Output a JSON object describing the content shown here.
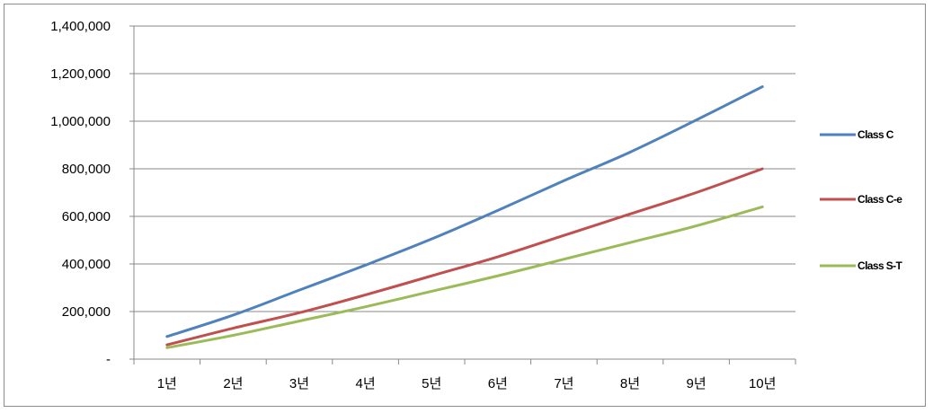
{
  "chart_data": {
    "type": "line",
    "title": "",
    "xlabel": "",
    "ylabel": "",
    "categories": [
      "1년",
      "2년",
      "3년",
      "4년",
      "5년",
      "6년",
      "7년",
      "8년",
      "9년",
      "10년"
    ],
    "ylim": [
      0,
      1400000
    ],
    "y_ticks": [
      0,
      200000,
      400000,
      600000,
      800000,
      1000000,
      1200000,
      1400000
    ],
    "y_tick_labels": [
      "-",
      "200,000",
      "400,000",
      "600,000",
      "800,000",
      "1,000,000",
      "1,200,000",
      "1,400,000"
    ],
    "grid": true,
    "legend_position": "right",
    "series": [
      {
        "name": "Class C",
        "color": "#4f81bd",
        "values": [
          95000,
          185000,
          290000,
          395000,
          505000,
          625000,
          750000,
          870000,
          1005000,
          1145000
        ]
      },
      {
        "name": "Class C-e",
        "color": "#c0504d",
        "values": [
          60000,
          130000,
          195000,
          270000,
          350000,
          430000,
          520000,
          610000,
          700000,
          800000
        ]
      },
      {
        "name": "Class S-T",
        "color": "#9bbb59",
        "values": [
          48000,
          100000,
          160000,
          220000,
          285000,
          350000,
          420000,
          490000,
          560000,
          640000
        ]
      }
    ]
  }
}
